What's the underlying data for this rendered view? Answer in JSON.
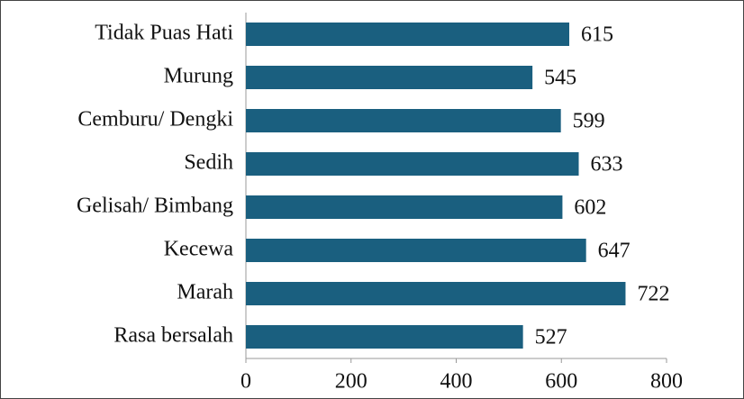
{
  "chart_data": {
    "type": "bar",
    "orientation": "horizontal",
    "categories": [
      "Tidak Puas Hati",
      "Murung",
      "Cemburu/ Dengki",
      "Sedih",
      "Gelisah/ Bimbang",
      "Kecewa",
      "Marah",
      "Rasa bersalah"
    ],
    "values": [
      615,
      545,
      599,
      633,
      602,
      647,
      722,
      527
    ],
    "color": "#1a5f7f",
    "xlim": [
      0,
      800
    ],
    "xticks": [
      0,
      200,
      400,
      600,
      800
    ]
  }
}
